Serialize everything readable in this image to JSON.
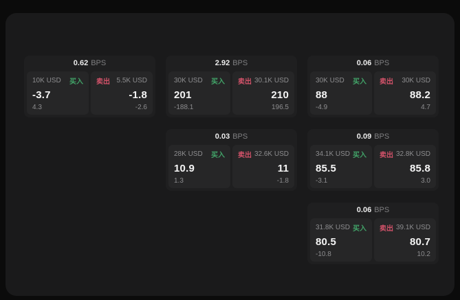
{
  "labels": {
    "buy": "买入",
    "sell": "卖出",
    "bps_unit": "BPS"
  },
  "colors": {
    "buy_green": "#42a368",
    "sell_red": "#d15269",
    "page_bg": "#0b0b0b",
    "panel_bg": "#1a1a1b",
    "card_bg": "#1f1f20",
    "pane_bg": "#262627"
  },
  "cards": [
    {
      "bps": "0.62",
      "grid": {
        "row": 1,
        "col": 1
      },
      "buy": {
        "amount": "10K USD",
        "price": "-3.7",
        "change": "4.3"
      },
      "sell": {
        "amount": "5.5K USD",
        "price": "-1.8",
        "change": "-2.6"
      }
    },
    {
      "bps": "2.92",
      "grid": {
        "row": 1,
        "col": 2
      },
      "buy": {
        "amount": "30K USD",
        "price": "201",
        "change": "-188.1"
      },
      "sell": {
        "amount": "30.1K USD",
        "price": "210",
        "change": "196.5"
      }
    },
    {
      "bps": "0.06",
      "grid": {
        "row": 1,
        "col": 3
      },
      "buy": {
        "amount": "30K USD",
        "price": "88",
        "change": "-4.9"
      },
      "sell": {
        "amount": "30K USD",
        "price": "88.2",
        "change": "4.7"
      }
    },
    {
      "bps": "0.03",
      "grid": {
        "row": 2,
        "col": 2
      },
      "buy": {
        "amount": "28K USD",
        "price": "10.9",
        "change": "1.3"
      },
      "sell": {
        "amount": "32.6K USD",
        "price": "11",
        "change": "-1.8"
      }
    },
    {
      "bps": "0.09",
      "grid": {
        "row": 2,
        "col": 3
      },
      "buy": {
        "amount": "34.1K USD",
        "price": "85.5",
        "change": "-3.1"
      },
      "sell": {
        "amount": "32.8K USD",
        "price": "85.8",
        "change": "3.0"
      }
    },
    {
      "bps": "0.06",
      "grid": {
        "row": 3,
        "col": 3
      },
      "buy": {
        "amount": "31.8K USD",
        "price": "80.5",
        "change": "-10.8"
      },
      "sell": {
        "amount": "39.1K USD",
        "price": "80.7",
        "change": "10.2"
      }
    }
  ]
}
